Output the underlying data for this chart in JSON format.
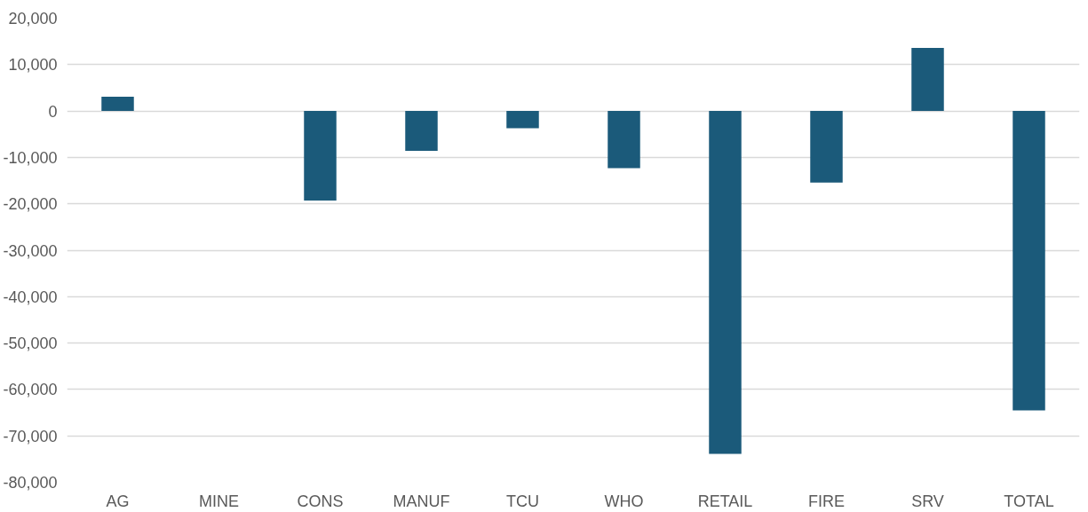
{
  "chart_data": {
    "type": "bar",
    "categories": [
      "AG",
      "MINE",
      "CONS",
      "MANUF",
      "TCU",
      "WHO",
      "RETAIL",
      "FIRE",
      "SRV",
      "TOTAL"
    ],
    "values": [
      3100,
      0,
      -19300,
      -8600,
      -3700,
      -12300,
      -73900,
      -15400,
      13600,
      -64500
    ],
    "color": "#1b5a7a",
    "ylim": [
      -80000,
      20000
    ],
    "yticks": [
      {
        "value": 20000,
        "label": "20,000"
      },
      {
        "value": 10000,
        "label": "10,000"
      },
      0,
      {
        "value": -10000,
        "label": "-10,000"
      },
      {
        "value": -20000,
        "label": "-20,000"
      },
      {
        "value": -30000,
        "label": "-30,000"
      },
      {
        "value": -40000,
        "label": "-40,000"
      },
      {
        "value": -50000,
        "label": "-50,000"
      },
      {
        "value": -60000,
        "label": "-60,000"
      },
      {
        "value": -70000,
        "label": "-70,000"
      },
      {
        "value": -80000,
        "label": "-80,000"
      }
    ],
    "grid": "y"
  }
}
